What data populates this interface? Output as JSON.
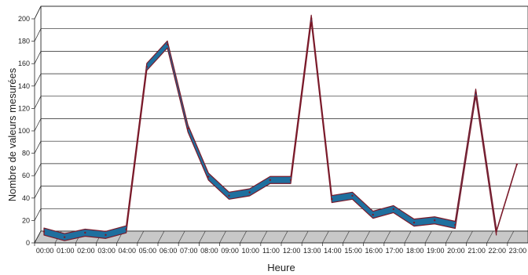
{
  "chart_data": {
    "type": "line",
    "xlabel": "Heure",
    "ylabel": "Nombre de valeurs mesurées",
    "ylim": [
      0,
      200
    ],
    "yticks": [
      0,
      20,
      40,
      60,
      80,
      100,
      120,
      140,
      160,
      180,
      200
    ],
    "grid": true,
    "style": "3d-ribbon",
    "colors": {
      "ribbon": "#1f6f9e",
      "ribbon_edge": "#7a1a2a",
      "floor": "#c8c8c8"
    },
    "categories": [
      "00:00",
      "01:00",
      "02:00",
      "03:00",
      "04:00",
      "05:00",
      "06:00",
      "07:00",
      "08:00",
      "09:00",
      "10:00",
      "11:00",
      "12:00",
      "13:00",
      "14:00",
      "15:00",
      "16:00",
      "17:00",
      "18:00",
      "19:00",
      "20:00",
      "21:00",
      "22:00",
      "23:00"
    ],
    "series": [
      {
        "values": [
          8,
          3,
          7,
          5,
          10,
          155,
          175,
          100,
          57,
          40,
          43,
          54,
          54,
          198,
          37,
          40,
          23,
          28,
          16,
          18,
          14,
          132,
          8,
          68
        ]
      }
    ]
  }
}
